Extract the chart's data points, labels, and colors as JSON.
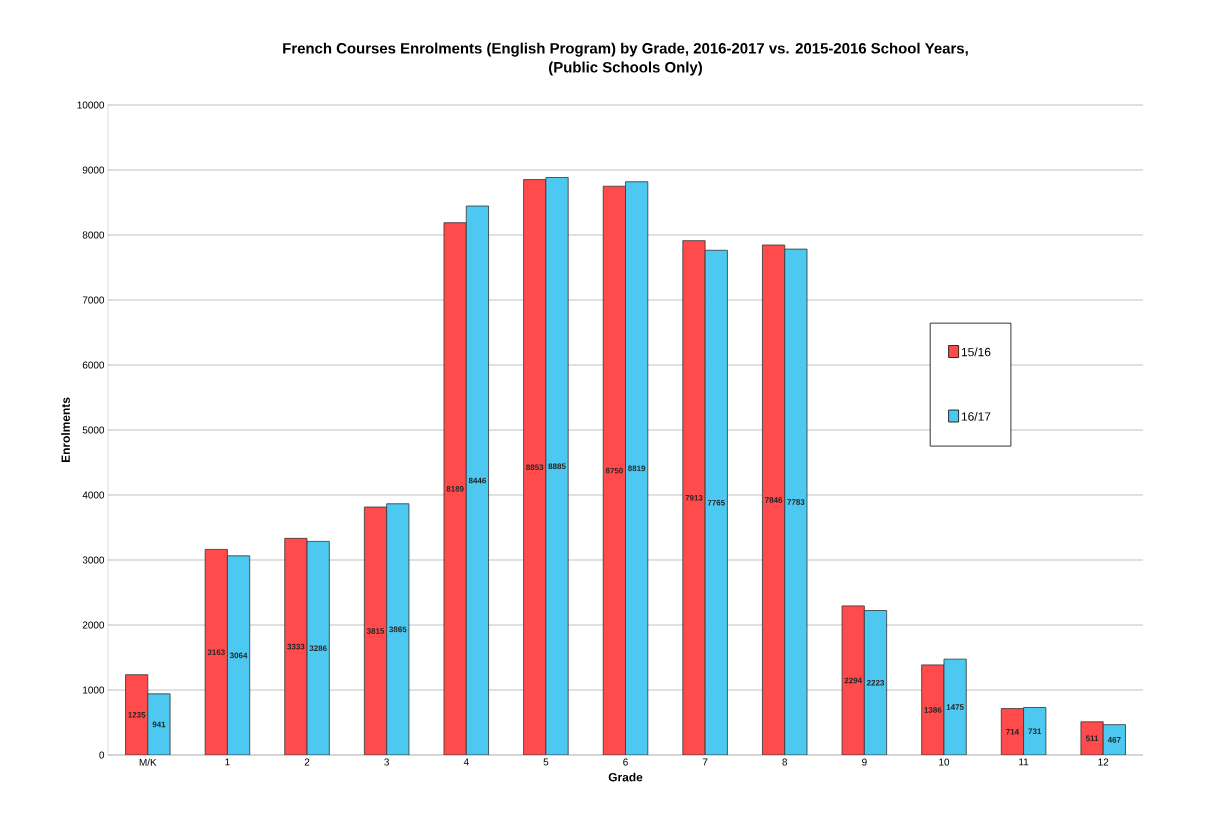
{
  "chart_data": {
    "type": "bar",
    "title": "French Courses Enrolments (English Program) by Grade, 2016-2017 vs. 2015-2016  School Years,",
    "subtitle": "(Public Schools Only)",
    "xlabel": "Grade",
    "ylabel": "Enrolments",
    "categories": [
      "M/K",
      "1",
      "2",
      "3",
      "4",
      "5",
      "6",
      "7",
      "8",
      "9",
      "10",
      "11",
      "12"
    ],
    "series": [
      {
        "name": "15/16",
        "color": "#ff4b4b",
        "values": [
          1235,
          3163,
          3333,
          3815,
          8189,
          8853,
          8750,
          7913,
          7846,
          2294,
          1386,
          714,
          511
        ]
      },
      {
        "name": "16/17",
        "color": "#4dc8f0",
        "values": [
          941,
          3064,
          3286,
          3865,
          8446,
          8885,
          8819,
          7765,
          7783,
          2223,
          1475,
          731,
          467
        ]
      }
    ],
    "ylim": [
      0,
      10000
    ],
    "yticks": [
      0,
      1000,
      2000,
      3000,
      4000,
      5000,
      6000,
      7000,
      8000,
      9000,
      10000
    ],
    "grid": "y",
    "legend": "right",
    "data_labels": true
  }
}
